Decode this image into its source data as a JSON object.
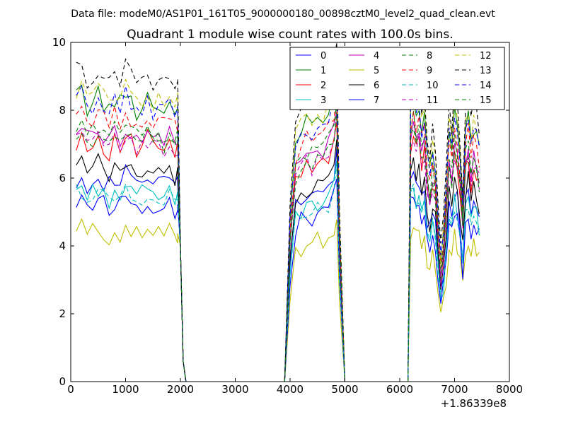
{
  "header": {
    "data_file": "Data file: modeM0/AS1P01_161T05_9000000180_00898cztM0_level2_quad_clean.evt"
  },
  "chart_data": {
    "type": "line",
    "title": "Quadrant 1 module wise count rates with 100.0s bins.",
    "xlabel": "",
    "ylabel": "",
    "x_offset_label": "+1.86339e8",
    "xlim": [
      0,
      8000
    ],
    "ylim": [
      0,
      10
    ],
    "x_ticks": [
      0,
      1000,
      2000,
      3000,
      4000,
      5000,
      6000,
      7000,
      8000
    ],
    "x_tick_labels": [
      "0",
      "1000",
      "2000",
      "3000",
      "4000",
      "5000",
      "6000",
      "7000",
      "8000"
    ],
    "y_ticks": [
      0,
      2,
      4,
      6,
      8,
      10
    ],
    "y_tick_labels": [
      "0",
      "2",
      "4",
      "6",
      "8",
      "10"
    ],
    "grid": false,
    "legend_position": "top-right",
    "segments": [
      {
        "x": [
          100,
          200,
          300,
          400,
          500,
          600,
          700,
          800,
          900,
          1000,
          1100,
          1200,
          1300,
          1400,
          1500,
          1600,
          1700,
          1800,
          1900,
          1950
        ],
        "profile": [
          0.97,
          1.0,
          0.94,
          0.96,
          0.99,
          0.95,
          0.93,
          0.97,
          0.95,
          0.99,
          0.96,
          0.93,
          0.95,
          0.98,
          0.94,
          0.96,
          0.93,
          0.95,
          0.92,
          0.94
        ]
      },
      {
        "x": [
          1950,
          2000,
          2050,
          2100,
          2200,
          3000,
          3900
        ],
        "rate": [
          null,
          4.0,
          0.6,
          0.0,
          0.0,
          0.0,
          0.0
        ]
      },
      {
        "x": [
          3900,
          4000,
          4100,
          4200,
          4300,
          4400,
          4500,
          4600,
          4700,
          4800,
          4850,
          4900,
          5000
        ],
        "profile": [
          0.0,
          0.55,
          0.82,
          0.86,
          0.88,
          0.87,
          0.9,
          0.89,
          0.92,
          0.98,
          1.08,
          0.55,
          0.0
        ]
      },
      {
        "x": [
          5000,
          5500,
          6000,
          6100,
          6150
        ],
        "rate": [
          0.0,
          0.0,
          0.0,
          0.0,
          0.0
        ]
      },
      {
        "x": [
          6150,
          6200,
          6250,
          6300,
          6350,
          6400,
          6450,
          6500,
          6550,
          6600,
          6650,
          6700,
          6750,
          6800,
          6850,
          6900,
          6950,
          7000,
          7050,
          7100,
          7150,
          7200,
          7250,
          7300,
          7350,
          7400,
          7450
        ],
        "profile": [
          0.0,
          0.95,
          1.0,
          0.93,
          0.96,
          0.87,
          0.92,
          0.78,
          0.72,
          0.8,
          0.74,
          0.55,
          0.42,
          0.5,
          0.68,
          0.88,
          0.8,
          0.92,
          0.87,
          0.76,
          0.6,
          0.86,
          0.92,
          0.8,
          0.87,
          0.84,
          0.78
        ]
      }
    ],
    "series": [
      {
        "name": "0",
        "color": "#0000ff",
        "dash": "solid",
        "level": 6.2
      },
      {
        "name": "1",
        "color": "#008000",
        "dash": "solid",
        "level": 8.6
      },
      {
        "name": "2",
        "color": "#ff0000",
        "dash": "solid",
        "level": 7.3
      },
      {
        "name": "3",
        "color": "#00bfbf",
        "dash": "solid",
        "level": 5.8
      },
      {
        "name": "4",
        "color": "#bf00bf",
        "dash": "solid",
        "level": 7.6
      },
      {
        "name": "5",
        "color": "#bfbf00",
        "dash": "solid",
        "level": 4.6
      },
      {
        "name": "6",
        "color": "#000000",
        "dash": "solid",
        "level": 6.5
      },
      {
        "name": "7",
        "color": "#0000ff",
        "dash": "solid",
        "level": 5.5
      },
      {
        "name": "8",
        "color": "#008000",
        "dash": "dashed",
        "level": 7.7
      },
      {
        "name": "9",
        "color": "#ff0000",
        "dash": "dashed",
        "level": 8.1
      },
      {
        "name": "10",
        "color": "#00bfbf",
        "dash": "dashed",
        "level": 5.7
      },
      {
        "name": "11",
        "color": "#bf00bf",
        "dash": "dashed",
        "level": 7.3
      },
      {
        "name": "12",
        "color": "#bfbf00",
        "dash": "dashed",
        "level": 8.8
      },
      {
        "name": "13",
        "color": "#000000",
        "dash": "dashed",
        "level": 9.4
      },
      {
        "name": "14",
        "color": "#0000ff",
        "dash": "dashed",
        "level": 8.5
      },
      {
        "name": "15",
        "color": "#008000",
        "dash": "dashed",
        "level": 7.4
      }
    ]
  }
}
